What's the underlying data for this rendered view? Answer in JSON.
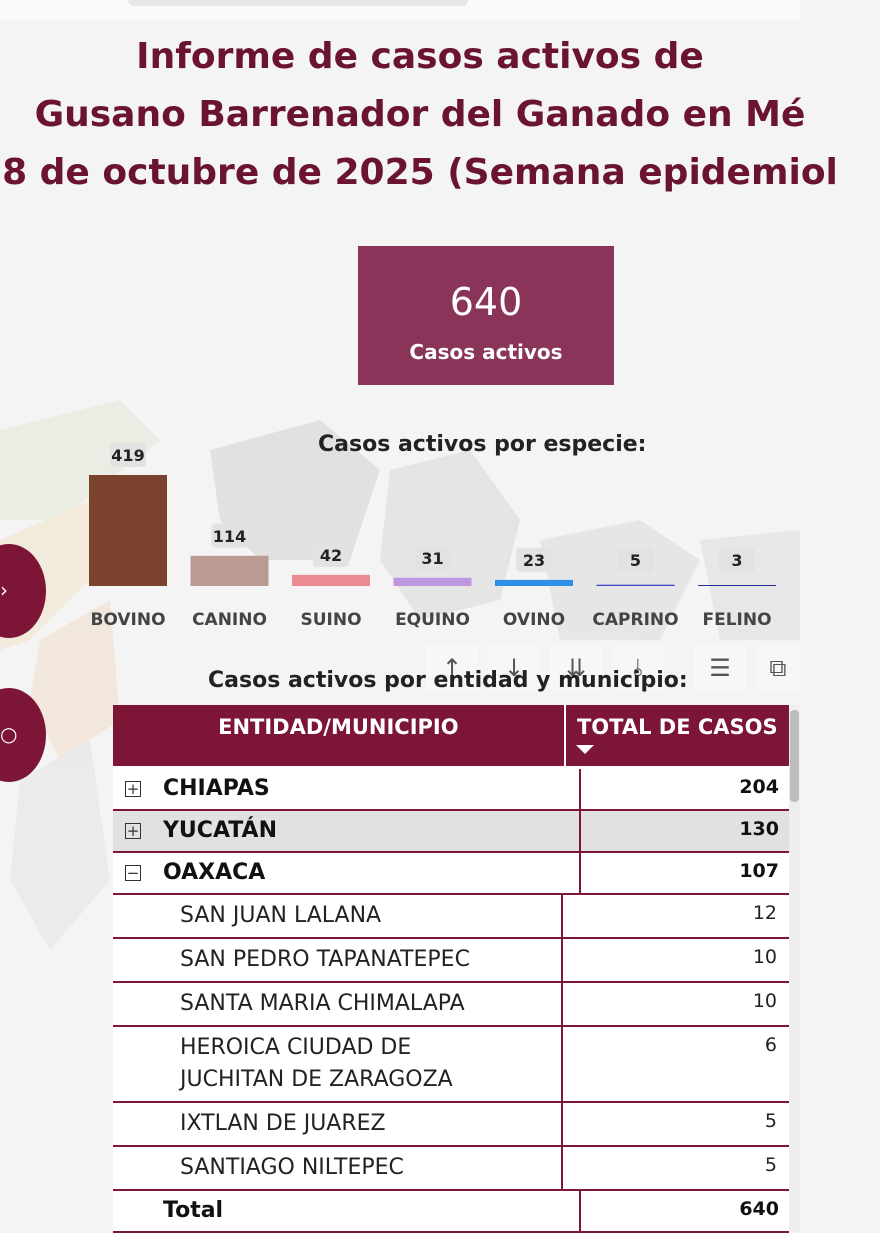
{
  "header": {
    "title_lines": [
      "Informe de casos activos de",
      "Gusano Barrenador del Ganado en Mé",
      "8 de octubre de 2025 (Semana epidemiol"
    ]
  },
  "kpi": {
    "value": "640",
    "label": "Casos activos"
  },
  "colors": {
    "brand": "#7d1537",
    "kpi": "#8a3459",
    "title": "#6a1430"
  },
  "chart_data": {
    "type": "bar",
    "title": "Casos activos por especie:",
    "categories": [
      "BOVINO",
      "CANINO",
      "SUINO",
      "EQUINO",
      "OVINO",
      "CAPRINO",
      "FELINO"
    ],
    "values": [
      419,
      114,
      42,
      31,
      23,
      5,
      3
    ],
    "colors": [
      "#7b432d",
      "#b99b91",
      "#ec8a91",
      "#bb98e0",
      "#2f8fe6",
      "#3d49c9",
      "#1f2b9c"
    ],
    "ylim": [
      0,
      419
    ],
    "grid": false
  },
  "table": {
    "title": "Casos activos por entidad y municipio:",
    "headers": [
      "ENTIDAD/MUNICIPIO",
      "TOTAL DE CASOS"
    ],
    "rows": [
      {
        "level": 1,
        "expander": "+",
        "name": "CHIAPAS",
        "value": "204"
      },
      {
        "level": 1,
        "expander": "+",
        "name": "YUCATÁN",
        "value": "130"
      },
      {
        "level": 1,
        "expander": "−",
        "name": "OAXACA",
        "value": "107"
      },
      {
        "level": 2,
        "name": "SAN JUAN LALANA",
        "value": "12"
      },
      {
        "level": 2,
        "name": "SAN PEDRO TAPANATEPEC",
        "value": "10"
      },
      {
        "level": 2,
        "name": "SANTA MARIA CHIMALAPA",
        "value": "10"
      },
      {
        "level": 2,
        "name": "HEROICA CIUDAD DE JUCHITAN DE ZARAGOZA",
        "value": "6"
      },
      {
        "level": 2,
        "name": "IXTLAN DE JUAREZ",
        "value": "5"
      },
      {
        "level": 2,
        "name": "SANTIAGO NILTEPEC",
        "value": "5"
      }
    ],
    "total_label": "Total",
    "total_value": "640"
  },
  "toolbar_icons": [
    "arrow-up-icon",
    "arrow-down-icon",
    "double-arrow-down-icon",
    "expand-level-icon",
    "filter-icon",
    "focus-mode-icon"
  ]
}
